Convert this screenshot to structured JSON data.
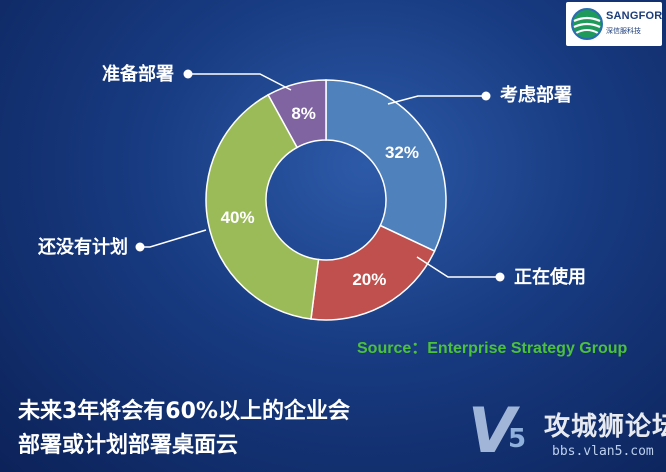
{
  "logo": {
    "name": "SANGFOR",
    "subtitle": "深信服科技"
  },
  "chart_data": {
    "type": "pie",
    "variant": "donut",
    "categories": [
      "考虑部署",
      "正在使用",
      "还没有计划",
      "准备部署"
    ],
    "values": [
      32,
      20,
      40,
      8
    ],
    "value_labels": [
      "32%",
      "20%",
      "40%",
      "8%"
    ],
    "colors": [
      "#4f81bd",
      "#c0504d",
      "#9bbb59",
      "#8064a2"
    ],
    "start": "12 o'clock",
    "direction": "clockwise"
  },
  "source": "Source：Enterprise Strategy Group",
  "headline": {
    "line1": "未来3年将会有60%以上的企业会",
    "line2": "部署或计划部署桌面云"
  },
  "watermark": {
    "letter": "V",
    "digit": "5",
    "name": "攻城狮论坛",
    "url": "bbs.vlan5.com"
  }
}
